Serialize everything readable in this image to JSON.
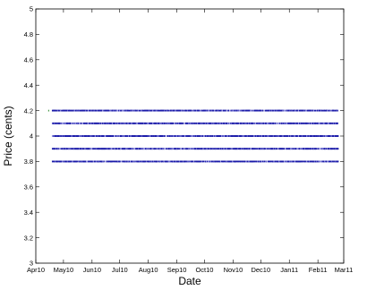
{
  "chart_data": {
    "type": "scatter",
    "xlabel": "Date",
    "ylabel": "Price (cents)",
    "ylim": [
      3,
      5
    ],
    "yticks": [
      "3",
      "3.2",
      "3.4",
      "3.6",
      "3.8",
      "4",
      "4.2",
      "4.4",
      "4.6",
      "4.8",
      "5"
    ],
    "xlim": [
      "2010-04-01",
      "2011-03-01"
    ],
    "xticks": [
      "Apr10",
      "May10",
      "Jun10",
      "Jul10",
      "Aug10",
      "Sep10",
      "Oct10",
      "Nov10",
      "Dec10",
      "Jan11",
      "Feb11",
      "Mar11"
    ],
    "x_range": [
      "2010-04-19",
      "2011-02-23"
    ],
    "levels": [
      3.8,
      3.9,
      4.0,
      4.1,
      4.2
    ],
    "marker_color": "#1a1aa8",
    "grid": false,
    "legend": "none"
  }
}
